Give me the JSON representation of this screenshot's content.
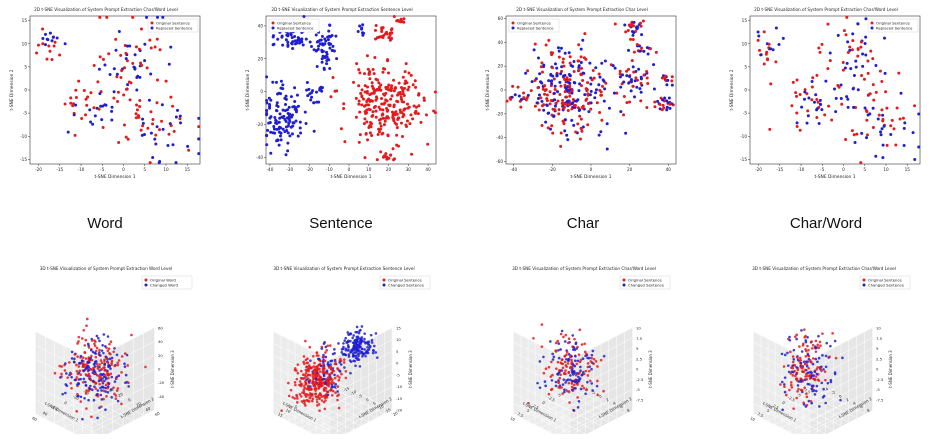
{
  "colors": {
    "original": "#e41a1c",
    "replaced": "#1f1fd0"
  },
  "captions": [
    "Word",
    "Sentence",
    "Char",
    "Char/Word"
  ],
  "chart_data": [
    {
      "id": "p2d-word",
      "type": "scatter",
      "title": "2D t-SNE Visualization of System Prompt Extraction Char/Word Level",
      "xlabel": "t-SNE Dimension 1",
      "ylabel": "t-SNE Dimension 2",
      "xlim": [
        -22,
        18
      ],
      "ylim": [
        -16,
        16
      ],
      "xticks": [
        -20,
        -15,
        -10,
        -5,
        0,
        5,
        10,
        15
      ],
      "yticks": [
        -15,
        -10,
        -5,
        0,
        5,
        10,
        15
      ],
      "legend": {
        "placement": "top-right",
        "entries": [
          "Original Sentence",
          "Replaced Sentence"
        ]
      },
      "clusters": [
        {
          "series": 0,
          "cx": -18,
          "cy": 9,
          "sx": 1.6,
          "sy": 1.8,
          "n": 12
        },
        {
          "series": 1,
          "cx": -17,
          "cy": 11,
          "sx": 2,
          "sy": 1.6,
          "n": 10
        },
        {
          "series": 0,
          "cx": 2,
          "cy": 6,
          "sx": 4,
          "sy": 5,
          "n": 40
        },
        {
          "series": 1,
          "cx": 3,
          "cy": 5,
          "sx": 4,
          "sy": 5.5,
          "n": 35
        },
        {
          "series": 0,
          "cx": -10,
          "cy": -2,
          "sx": 3,
          "sy": 3,
          "n": 22
        },
        {
          "series": 1,
          "cx": -7,
          "cy": -4,
          "sx": 3,
          "sy": 3,
          "n": 18
        },
        {
          "series": 0,
          "cx": 7,
          "cy": -8,
          "sx": 5,
          "sy": 4,
          "n": 30
        },
        {
          "series": 1,
          "cx": 10,
          "cy": -9,
          "sx": 4,
          "sy": 4,
          "n": 24
        }
      ]
    },
    {
      "id": "p2d-sentence",
      "type": "scatter",
      "title": "2D t-SNE Visualization of System Prompt Extraction Sentence Level",
      "xlabel": "t-SNE Dimension 1",
      "ylabel": "t-SNE Dimension 2",
      "xlim": [
        -42,
        44
      ],
      "ylim": [
        -44,
        46
      ],
      "xticks": [
        -40,
        -30,
        -20,
        -10,
        0,
        10,
        20,
        30,
        40
      ],
      "yticks": [
        -40,
        -20,
        0,
        20,
        40
      ],
      "legend": {
        "placement": "top-left",
        "entries": [
          "Original Sentence",
          "Replaced Sentence"
        ]
      },
      "clusters": [
        {
          "series": 1,
          "cx": -28,
          "cy": 34,
          "sx": 5,
          "sy": 4,
          "n": 60
        },
        {
          "series": 1,
          "cx": -12,
          "cy": 28,
          "sx": 3,
          "sy": 7,
          "n": 55
        },
        {
          "series": 1,
          "cx": -33,
          "cy": -15,
          "sx": 6,
          "sy": 9,
          "n": 120
        },
        {
          "series": 1,
          "cx": -18,
          "cy": 0,
          "sx": 3,
          "sy": 4,
          "n": 20
        },
        {
          "series": 0,
          "cx": 18,
          "cy": -6,
          "sx": 10,
          "sy": 12,
          "n": 260
        },
        {
          "series": 0,
          "cx": 18,
          "cy": 36,
          "sx": 3,
          "sy": 3,
          "n": 25
        },
        {
          "series": 0,
          "cx": 26,
          "cy": 44,
          "sx": 2,
          "sy": 1.5,
          "n": 10
        },
        {
          "series": 0,
          "cx": 19,
          "cy": -40,
          "sx": 2.5,
          "sy": 2,
          "n": 14
        },
        {
          "series": 1,
          "cx": 7,
          "cy": 38,
          "sx": 1.5,
          "sy": 2,
          "n": 8
        }
      ]
    },
    {
      "id": "p2d-char",
      "type": "scatter",
      "title": "2D t-SNE Visualization of System Prompt Extraction Char Level",
      "xlabel": "t-SNE Dimension 1",
      "ylabel": "t-SNE Dimension 2",
      "xlim": [
        -44,
        44
      ],
      "ylim": [
        -62,
        62
      ],
      "xticks": [
        -40,
        -20,
        0,
        20,
        40
      ],
      "yticks": [
        -60,
        -40,
        -20,
        0,
        20,
        40,
        60
      ],
      "legend": {
        "placement": "top-left",
        "entries": [
          "Original Sentence",
          "Replaced Sentence"
        ]
      },
      "clusters": [
        {
          "series": 0,
          "cx": -12,
          "cy": 0,
          "sx": 11,
          "sy": 18,
          "n": 150
        },
        {
          "series": 1,
          "cx": -12,
          "cy": 0,
          "sx": 11,
          "sy": 18,
          "n": 150
        },
        {
          "series": 0,
          "cx": 22,
          "cy": 52,
          "sx": 3,
          "sy": 3,
          "n": 14
        },
        {
          "series": 1,
          "cx": 23,
          "cy": 52,
          "sx": 3,
          "sy": 3,
          "n": 12
        },
        {
          "series": 0,
          "cx": 26,
          "cy": 35,
          "sx": 3,
          "sy": 4,
          "n": 10
        },
        {
          "series": 1,
          "cx": 27,
          "cy": 35,
          "sx": 3,
          "sy": 4,
          "n": 8
        },
        {
          "series": 0,
          "cx": 22,
          "cy": 5,
          "sx": 5,
          "sy": 9,
          "n": 24
        },
        {
          "series": 1,
          "cx": 23,
          "cy": 5,
          "sx": 5,
          "sy": 9,
          "n": 24
        },
        {
          "series": 0,
          "cx": 40,
          "cy": 10,
          "sx": 2,
          "sy": 3,
          "n": 6
        },
        {
          "series": 1,
          "cx": 40,
          "cy": 10,
          "sx": 2,
          "sy": 3,
          "n": 6
        },
        {
          "series": 0,
          "cx": 38,
          "cy": -12,
          "sx": 3,
          "sy": 4,
          "n": 12
        },
        {
          "series": 1,
          "cx": 39,
          "cy": -12,
          "sx": 3,
          "sy": 4,
          "n": 12
        },
        {
          "series": 0,
          "cx": -38,
          "cy": -8,
          "sx": 3,
          "sy": 5,
          "n": 8
        },
        {
          "series": 1,
          "cx": -38,
          "cy": -8,
          "sx": 3,
          "sy": 5,
          "n": 5
        }
      ]
    },
    {
      "id": "p2d-charword",
      "type": "scatter",
      "title": "2D t-SNE Visualization of System Prompt Extraction Char/Word Level",
      "xlabel": "t-SNE Dimension 1",
      "ylabel": "t-SNE Dimension 2",
      "xlim": [
        -22,
        18
      ],
      "ylim": [
        -16,
        16
      ],
      "xticks": [
        -20,
        -15,
        -10,
        -5,
        0,
        5,
        10,
        15
      ],
      "yticks": [
        -15,
        -10,
        -5,
        0,
        5,
        10,
        15
      ],
      "legend": {
        "placement": "top-right",
        "entries": [
          "Original Sentence",
          "Replaced Sentence"
        ]
      },
      "clusters": [
        {
          "series": 0,
          "cx": -18,
          "cy": 9,
          "sx": 1.6,
          "sy": 1.8,
          "n": 12
        },
        {
          "series": 1,
          "cx": -17,
          "cy": 11,
          "sx": 2,
          "sy": 1.6,
          "n": 10
        },
        {
          "series": 0,
          "cx": 2,
          "cy": 6,
          "sx": 4,
          "sy": 5,
          "n": 40
        },
        {
          "series": 1,
          "cx": 3,
          "cy": 5,
          "sx": 4,
          "sy": 5.5,
          "n": 35
        },
        {
          "series": 0,
          "cx": -10,
          "cy": -2,
          "sx": 3,
          "sy": 3,
          "n": 22
        },
        {
          "series": 1,
          "cx": -7,
          "cy": -4,
          "sx": 3,
          "sy": 3,
          "n": 18
        },
        {
          "series": 0,
          "cx": 7,
          "cy": -8,
          "sx": 5,
          "sy": 4,
          "n": 30
        },
        {
          "series": 1,
          "cx": 10,
          "cy": -9,
          "sx": 4,
          "sy": 4,
          "n": 24
        }
      ]
    },
    {
      "id": "p3d-word",
      "type": "scatter",
      "title": "3D t-SNE Visualization of System Prompt Extraction Word Level",
      "xlabel": "t-SNE Dimension 1",
      "ylabel": "t-SNE Dimension 2",
      "zlabel": "t-SNE Dimension 3",
      "xlim": [
        -60,
        60
      ],
      "ylim": [
        -60,
        60
      ],
      "zlim": [
        -60,
        60
      ],
      "xticks": [
        -40,
        -20,
        0,
        20,
        40,
        60
      ],
      "yticks": [
        -40,
        -20,
        0,
        20,
        40,
        60
      ],
      "zticks": [
        -40,
        -20,
        0,
        20,
        40,
        60
      ],
      "legend": {
        "placement": "top-right",
        "entries": [
          "Original Word",
          "Changed Word"
        ]
      },
      "clusters": [
        {
          "series": 0,
          "cx": 0,
          "cy": 0,
          "cz": 0,
          "sx": 22,
          "sy": 22,
          "sz": 22,
          "n": 180
        },
        {
          "series": 1,
          "cx": 0,
          "cy": 0,
          "cz": 0,
          "sx": 22,
          "sy": 22,
          "sz": 22,
          "n": 150
        }
      ]
    },
    {
      "id": "p3d-sentence",
      "type": "scatter",
      "title": "3D t-SNE Visualization of System Prompt Extraction Sentence Level",
      "xlabel": "t-SNE Dimension 1",
      "ylabel": "t-SNE Dimension 2",
      "zlabel": "t-SNE Dimension 3",
      "xlim": [
        -20,
        20
      ],
      "ylim": [
        -20,
        20
      ],
      "zlim": [
        -20,
        15
      ],
      "xticks": [
        -20,
        -15,
        -10,
        -5,
        0,
        5,
        10,
        15
      ],
      "yticks": [
        -15,
        -10,
        -5,
        0,
        5,
        10,
        15,
        20
      ],
      "zticks": [
        -20,
        -15,
        -10,
        -5,
        0,
        5,
        10,
        15
      ],
      "legend": {
        "placement": "top-right",
        "entries": [
          "Original Sentence",
          "Changed Sentence"
        ]
      },
      "clusters": [
        {
          "series": 1,
          "cx": -10,
          "cy": 6,
          "cz": 6,
          "sx": 4,
          "sy": 4,
          "sz": 3,
          "n": 170
        },
        {
          "series": 0,
          "cx": 5,
          "cy": -5,
          "cz": -6,
          "sx": 6,
          "sy": 5,
          "sz": 5,
          "n": 330
        },
        {
          "series": 1,
          "cx": 2,
          "cy": -2,
          "cz": -2,
          "sx": 4,
          "sy": 4,
          "sz": 4,
          "n": 60
        }
      ]
    },
    {
      "id": "p3d-char",
      "type": "scatter",
      "title": "3D t-SNE Visualization of System Prompt Extraction Char/Word Level",
      "xlabel": "t-SNE Dimension 1",
      "ylabel": "t-SNE Dimension 2",
      "zlabel": "t-SNE Dimension 3",
      "xlim": [
        -10,
        10
      ],
      "ylim": [
        -6,
        10
      ],
      "zlim": [
        -10,
        10
      ],
      "xticks": [
        -7.5,
        -5.0,
        -2.5,
        0.0,
        2.5,
        5.0,
        7.5,
        10.0
      ],
      "yticks": [
        -4,
        -2,
        0,
        2,
        4,
        6,
        8
      ],
      "zticks": [
        -7.5,
        -5.0,
        -2.5,
        0.0,
        2.5,
        5.0,
        7.5,
        10.0
      ],
      "legend": {
        "placement": "top-right",
        "entries": [
          "Original Sentence",
          "Changed Sentence"
        ]
      },
      "clusters": [
        {
          "series": 0,
          "cx": 0,
          "cy": 1,
          "cz": 0,
          "sx": 3,
          "sy": 2.5,
          "sz": 4,
          "n": 120
        },
        {
          "series": 1,
          "cx": 0,
          "cy": 1,
          "cz": 0,
          "sx": 3,
          "sy": 2.5,
          "sz": 4,
          "n": 100
        }
      ]
    },
    {
      "id": "p3d-charword",
      "type": "scatter",
      "title": "3D t-SNE Visualization of System Prompt Extraction Char/Word Level",
      "xlabel": "t-SNE Dimension 1",
      "ylabel": "t-SNE Dimension 2",
      "zlabel": "t-SNE Dimension 3",
      "xlim": [
        -10,
        10
      ],
      "ylim": [
        -6,
        10
      ],
      "zlim": [
        -10,
        10
      ],
      "xticks": [
        -7.5,
        -5.0,
        -2.5,
        0.0,
        2.5,
        5.0,
        7.5,
        10.0
      ],
      "yticks": [
        -4,
        -2,
        0,
        2,
        4,
        6,
        8
      ],
      "zticks": [
        -7.5,
        -5.0,
        -2.5,
        0.0,
        2.5,
        5.0,
        7.5,
        10.0
      ],
      "legend": {
        "placement": "top-right",
        "entries": [
          "Original Sentence",
          "Changed Sentence"
        ]
      },
      "clusters": [
        {
          "series": 0,
          "cx": 0,
          "cy": 1,
          "cz": 0,
          "sx": 3,
          "sy": 2.5,
          "sz": 4,
          "n": 120
        },
        {
          "series": 1,
          "cx": 0,
          "cy": 1,
          "cz": 0,
          "sx": 3,
          "sy": 2.5,
          "sz": 4,
          "n": 100
        }
      ]
    }
  ]
}
